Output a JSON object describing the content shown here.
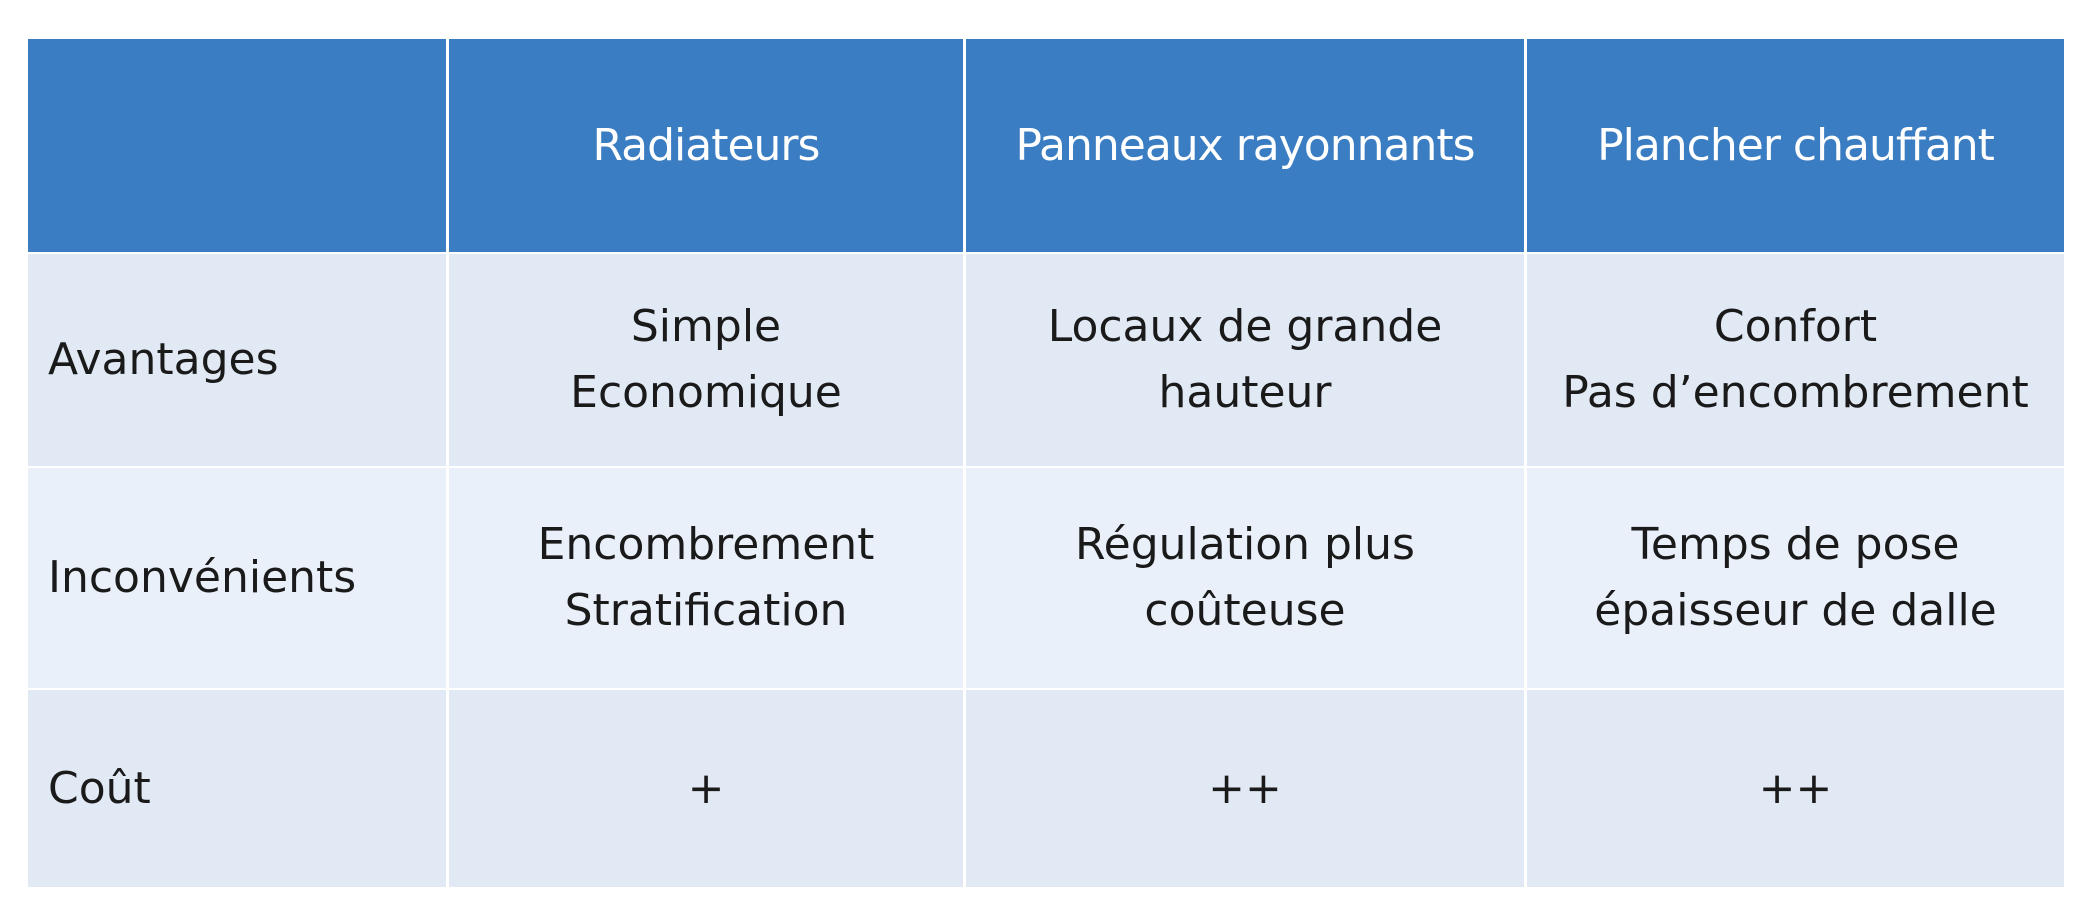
{
  "table": {
    "headers": [
      "",
      "Radiateurs",
      "Panneaux rayonnants",
      "Plancher chauffant"
    ],
    "rows": [
      {
        "label": "Avantages",
        "cells": [
          [
            "Simple",
            "Economique"
          ],
          [
            "Locaux de grande",
            "hauteur"
          ],
          [
            "Confort",
            "Pas d’encombrement"
          ]
        ]
      },
      {
        "label": "Inconvénients",
        "cells": [
          [
            "Encombrement",
            "Stratification"
          ],
          [
            "Régulation plus",
            "coûteuse"
          ],
          [
            "Temps de pose",
            "épaisseur de dalle"
          ]
        ]
      },
      {
        "label": "Coût",
        "cells": [
          [
            "+"
          ],
          [
            "++"
          ],
          [
            "++"
          ]
        ]
      }
    ]
  },
  "colors": {
    "header_bg": "#3a7dc2",
    "header_text": "#ffffff",
    "row_band_1": "#e1e9f4",
    "row_band_2": "#eaf0fa",
    "body_text": "#1a1a1a"
  }
}
